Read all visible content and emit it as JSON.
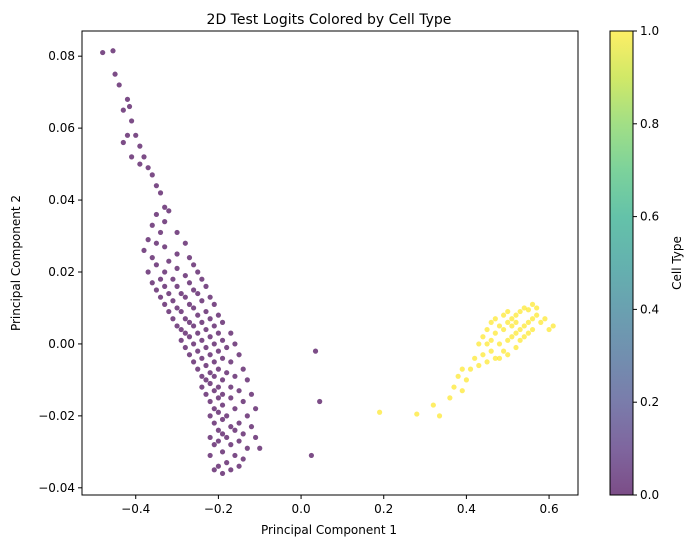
{
  "chart_data": {
    "type": "scatter",
    "title": "2D Test Logits Colored by Cell Type",
    "xlabel": "Principal Component 1",
    "ylabel": "Principal Component 2",
    "xlim": [
      -0.53,
      0.67
    ],
    "ylim": [
      -0.042,
      0.087
    ],
    "xticks": [
      {
        "v": -0.4,
        "label": "−0.4"
      },
      {
        "v": -0.2,
        "label": "−0.2"
      },
      {
        "v": 0.0,
        "label": "0.0"
      },
      {
        "v": 0.2,
        "label": "0.2"
      },
      {
        "v": 0.4,
        "label": "0.4"
      },
      {
        "v": 0.6,
        "label": "0.6"
      }
    ],
    "yticks": [
      {
        "v": -0.04,
        "label": "−0.04"
      },
      {
        "v": -0.02,
        "label": "−0.02"
      },
      {
        "v": 0.0,
        "label": "0.00"
      },
      {
        "v": 0.02,
        "label": "0.02"
      },
      {
        "v": 0.04,
        "label": "0.04"
      },
      {
        "v": 0.06,
        "label": "0.06"
      },
      {
        "v": 0.08,
        "label": "0.08"
      }
    ],
    "grid": false,
    "colormap": "viridis",
    "point_alpha": 0.7,
    "colors": {
      "cell_type_0": "#440154",
      "cell_type_1": "#fde725"
    },
    "colorbar": {
      "label": "Cell Type",
      "range": [
        0.0,
        1.0
      ],
      "ticks": [
        {
          "v": 0.0,
          "label": "0.0"
        },
        {
          "v": 0.2,
          "label": "0.2"
        },
        {
          "v": 0.4,
          "label": "0.4"
        },
        {
          "v": 0.6,
          "label": "0.6"
        },
        {
          "v": 0.8,
          "label": "0.8"
        },
        {
          "v": 1.0,
          "label": "1.0"
        }
      ]
    },
    "series": [
      {
        "value": 0,
        "points": [
          [
            -0.48,
            0.081
          ],
          [
            -0.455,
            0.0815
          ],
          [
            -0.45,
            0.075
          ],
          [
            -0.44,
            0.072
          ],
          [
            -0.42,
            0.068
          ],
          [
            -0.415,
            0.066
          ],
          [
            -0.43,
            0.065
          ],
          [
            -0.41,
            0.062
          ],
          [
            -0.42,
            0.058
          ],
          [
            -0.4,
            0.058
          ],
          [
            -0.43,
            0.056
          ],
          [
            -0.39,
            0.055
          ],
          [
            -0.41,
            0.052
          ],
          [
            -0.38,
            0.052
          ],
          [
            -0.39,
            0.05
          ],
          [
            -0.37,
            0.049
          ],
          [
            -0.36,
            0.047
          ],
          [
            -0.35,
            0.044
          ],
          [
            -0.34,
            0.042
          ],
          [
            -0.33,
            0.038
          ],
          [
            -0.32,
            0.037
          ],
          [
            -0.35,
            0.036
          ],
          [
            -0.33,
            0.034
          ],
          [
            -0.36,
            0.033
          ],
          [
            -0.34,
            0.031
          ],
          [
            -0.3,
            0.031
          ],
          [
            -0.37,
            0.029
          ],
          [
            -0.35,
            0.028
          ],
          [
            -0.28,
            0.028
          ],
          [
            -0.33,
            0.027
          ],
          [
            -0.38,
            0.026
          ],
          [
            -0.3,
            0.025
          ],
          [
            -0.36,
            0.024
          ],
          [
            -0.27,
            0.024
          ],
          [
            -0.32,
            0.023
          ],
          [
            -0.35,
            0.022
          ],
          [
            -0.26,
            0.022
          ],
          [
            -0.3,
            0.021
          ],
          [
            -0.37,
            0.02
          ],
          [
            -0.33,
            0.02
          ],
          [
            -0.25,
            0.02
          ],
          [
            -0.28,
            0.019
          ],
          [
            -0.34,
            0.018
          ],
          [
            -0.31,
            0.018
          ],
          [
            -0.24,
            0.018
          ],
          [
            -0.36,
            0.017
          ],
          [
            -0.27,
            0.017
          ],
          [
            -0.3,
            0.016
          ],
          [
            -0.33,
            0.016
          ],
          [
            -0.23,
            0.016
          ],
          [
            -0.26,
            0.015
          ],
          [
            -0.35,
            0.015
          ],
          [
            -0.29,
            0.014
          ],
          [
            -0.32,
            0.014
          ],
          [
            -0.25,
            0.014
          ],
          [
            -0.22,
            0.013
          ],
          [
            -0.28,
            0.013
          ],
          [
            -0.34,
            0.013
          ],
          [
            -0.31,
            0.012
          ],
          [
            -0.24,
            0.012
          ],
          [
            -0.27,
            0.011
          ],
          [
            -0.33,
            0.011
          ],
          [
            -0.21,
            0.011
          ],
          [
            -0.3,
            0.01
          ],
          [
            -0.26,
            0.01
          ],
          [
            -0.23,
            0.009
          ],
          [
            -0.32,
            0.009
          ],
          [
            -0.29,
            0.009
          ],
          [
            -0.2,
            0.008
          ],
          [
            -0.25,
            0.008
          ],
          [
            -0.28,
            0.007
          ],
          [
            -0.31,
            0.007
          ],
          [
            -0.22,
            0.007
          ],
          [
            -0.27,
            0.006
          ],
          [
            -0.24,
            0.006
          ],
          [
            -0.19,
            0.006
          ],
          [
            -0.3,
            0.005
          ],
          [
            -0.26,
            0.005
          ],
          [
            -0.21,
            0.005
          ],
          [
            -0.23,
            0.004
          ],
          [
            -0.29,
            0.004
          ],
          [
            -0.28,
            0.003
          ],
          [
            -0.25,
            0.003
          ],
          [
            -0.2,
            0.003
          ],
          [
            -0.17,
            0.003
          ],
          [
            -0.22,
            0.002
          ],
          [
            -0.27,
            0.002
          ],
          [
            -0.24,
            0.001
          ],
          [
            -0.19,
            0.001
          ],
          [
            -0.29,
            0.001
          ],
          [
            -0.26,
            0.0
          ],
          [
            -0.21,
            0.0
          ],
          [
            -0.16,
            0.0
          ],
          [
            -0.23,
            -0.001
          ],
          [
            -0.28,
            -0.001
          ],
          [
            -0.18,
            -0.001
          ],
          [
            -0.25,
            -0.002
          ],
          [
            -0.2,
            -0.002
          ],
          [
            -0.27,
            -0.003
          ],
          [
            -0.22,
            -0.003
          ],
          [
            -0.15,
            -0.003
          ],
          [
            -0.24,
            -0.004
          ],
          [
            -0.19,
            -0.004
          ],
          [
            -0.26,
            -0.005
          ],
          [
            -0.21,
            -0.005
          ],
          [
            -0.17,
            -0.005
          ],
          [
            -0.23,
            -0.006
          ],
          [
            -0.25,
            -0.007
          ],
          [
            -0.2,
            -0.007
          ],
          [
            -0.14,
            -0.007
          ],
          [
            -0.22,
            -0.008
          ],
          [
            -0.18,
            -0.008
          ],
          [
            -0.24,
            -0.009
          ],
          [
            -0.21,
            -0.009
          ],
          [
            -0.16,
            -0.009
          ],
          [
            -0.23,
            -0.01
          ],
          [
            -0.19,
            -0.01
          ],
          [
            -0.13,
            -0.01
          ],
          [
            -0.22,
            -0.011
          ],
          [
            -0.2,
            -0.012
          ],
          [
            -0.17,
            -0.012
          ],
          [
            -0.24,
            -0.012
          ],
          [
            -0.21,
            -0.013
          ],
          [
            -0.15,
            -0.013
          ],
          [
            -0.19,
            -0.014
          ],
          [
            -0.23,
            -0.014
          ],
          [
            -0.12,
            -0.014
          ],
          [
            -0.2,
            -0.015
          ],
          [
            -0.17,
            -0.015
          ],
          [
            -0.22,
            -0.016
          ],
          [
            -0.14,
            -0.016
          ],
          [
            -0.19,
            -0.017
          ],
          [
            -0.21,
            -0.018
          ],
          [
            -0.16,
            -0.018
          ],
          [
            -0.11,
            -0.018
          ],
          [
            -0.2,
            -0.019
          ],
          [
            -0.18,
            -0.02
          ],
          [
            -0.13,
            -0.02
          ],
          [
            -0.22,
            -0.02
          ],
          [
            -0.19,
            -0.021
          ],
          [
            -0.15,
            -0.022
          ],
          [
            -0.21,
            -0.022
          ],
          [
            -0.17,
            -0.023
          ],
          [
            -0.12,
            -0.023
          ],
          [
            -0.2,
            -0.024
          ],
          [
            -0.16,
            -0.024
          ],
          [
            -0.19,
            -0.025
          ],
          [
            -0.14,
            -0.025
          ],
          [
            -0.22,
            -0.026
          ],
          [
            -0.18,
            -0.026
          ],
          [
            -0.11,
            -0.026
          ],
          [
            -0.2,
            -0.027
          ],
          [
            -0.15,
            -0.027
          ],
          [
            -0.21,
            -0.028
          ],
          [
            -0.17,
            -0.028
          ],
          [
            -0.13,
            -0.029
          ],
          [
            -0.1,
            -0.029
          ],
          [
            -0.19,
            -0.03
          ],
          [
            -0.16,
            -0.031
          ],
          [
            -0.22,
            -0.031
          ],
          [
            -0.14,
            -0.032
          ],
          [
            -0.18,
            -0.033
          ],
          [
            -0.2,
            -0.034
          ],
          [
            -0.15,
            -0.034
          ],
          [
            -0.17,
            -0.035
          ],
          [
            -0.21,
            -0.035
          ],
          [
            -0.19,
            -0.036
          ],
          [
            0.035,
            -0.002
          ],
          [
            0.045,
            -0.016
          ],
          [
            0.025,
            -0.031
          ]
        ]
      },
      {
        "value": 1,
        "points": [
          [
            0.19,
            -0.019
          ],
          [
            0.28,
            -0.0195
          ],
          [
            0.32,
            -0.017
          ],
          [
            0.335,
            -0.02
          ],
          [
            0.36,
            -0.015
          ],
          [
            0.37,
            -0.012
          ],
          [
            0.39,
            -0.013
          ],
          [
            0.38,
            -0.009
          ],
          [
            0.4,
            -0.01
          ],
          [
            0.39,
            -0.007
          ],
          [
            0.41,
            -0.007
          ],
          [
            0.42,
            -0.004
          ],
          [
            0.43,
            -0.006
          ],
          [
            0.44,
            -0.003
          ],
          [
            0.43,
            0.0
          ],
          [
            0.45,
            -0.005
          ],
          [
            0.44,
            0.002
          ],
          [
            0.46,
            -0.002
          ],
          [
            0.45,
            0.004
          ],
          [
            0.47,
            -0.004
          ],
          [
            0.46,
            0.001
          ],
          [
            0.48,
            0.0
          ],
          [
            0.47,
            0.003
          ],
          [
            0.49,
            -0.002
          ],
          [
            0.48,
            0.005
          ],
          [
            0.5,
            0.001
          ],
          [
            0.49,
            0.004
          ],
          [
            0.51,
            0.002
          ],
          [
            0.5,
            0.006
          ],
          [
            0.52,
            0.003
          ],
          [
            0.51,
            0.007
          ],
          [
            0.53,
            0.004
          ],
          [
            0.52,
            0.008
          ],
          [
            0.54,
            0.005
          ],
          [
            0.53,
            0.009
          ],
          [
            0.55,
            0.006
          ],
          [
            0.54,
            0.01
          ],
          [
            0.56,
            0.007
          ],
          [
            0.55,
            0.0095
          ],
          [
            0.57,
            0.008
          ],
          [
            0.56,
            0.011
          ],
          [
            0.58,
            0.006
          ],
          [
            0.57,
            0.01
          ],
          [
            0.59,
            0.007
          ],
          [
            0.6,
            0.004
          ],
          [
            0.61,
            0.005
          ],
          [
            0.5,
            -0.003
          ],
          [
            0.52,
            -0.001
          ],
          [
            0.48,
            -0.004
          ],
          [
            0.46,
            0.006
          ],
          [
            0.5,
            0.009
          ],
          [
            0.53,
            0.001
          ],
          [
            0.55,
            0.003
          ],
          [
            0.47,
            0.007
          ],
          [
            0.49,
            0.008
          ],
          [
            0.51,
            0.005
          ],
          [
            0.45,
            0.0
          ],
          [
            0.54,
            0.002
          ],
          [
            0.56,
            0.004
          ],
          [
            0.52,
            0.006
          ]
        ]
      }
    ]
  }
}
